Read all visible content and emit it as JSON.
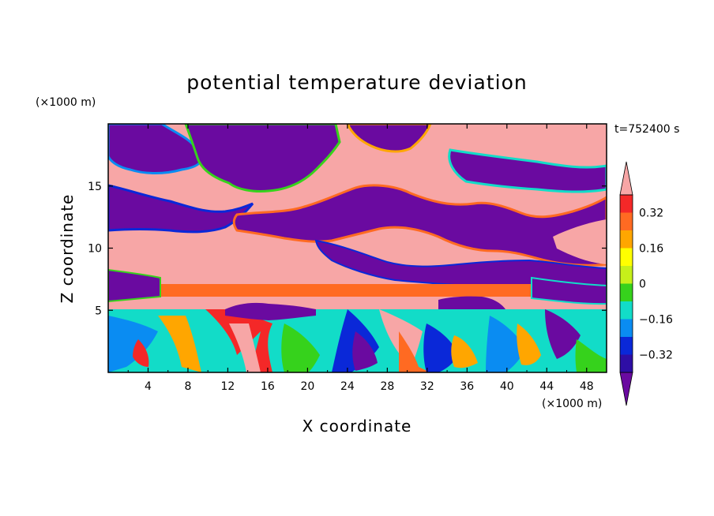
{
  "chart_data": {
    "type": "heatmap",
    "title": "potential temperature deviation",
    "xlabel": "X coordinate",
    "ylabel": "Z coordinate",
    "x_unit": "(×1000 m)",
    "y_unit": "(×1000 m)",
    "time_label": "t=752400 s",
    "xlim": [
      0,
      50
    ],
    "ylim": [
      0,
      20
    ],
    "x_ticks": [
      4,
      8,
      12,
      16,
      20,
      24,
      28,
      32,
      36,
      40,
      44,
      48
    ],
    "y_ticks": [
      5,
      10,
      15
    ],
    "colorbar": {
      "levels": [
        -0.4,
        -0.32,
        -0.24,
        -0.16,
        -0.08,
        0,
        0.08,
        0.16,
        0.24,
        0.32,
        0.4
      ],
      "tick_values": [
        0.32,
        0.16,
        0,
        -0.16,
        -0.32
      ],
      "tick_labels": [
        "0.32",
        "0.16",
        "0",
        "−0.16",
        "−0.32"
      ],
      "colors": [
        "#6a0aa0",
        "#2e0ea5",
        "#0a28d8",
        "#0a8cf2",
        "#12dcc8",
        "#36d21c",
        "#c6f01a",
        "#ffff00",
        "#ffa600",
        "#ff6a22",
        "#f42828",
        "#f7a6a6"
      ],
      "extend": "both"
    },
    "field_description_bands": [
      {
        "z_from": 0,
        "z_to": 5.2,
        "pattern": "mixed turbulent, values from -0.4 to 0.4"
      },
      {
        "z_from": 5.2,
        "z_to": 6.2,
        "pattern": "strongly positive (>0.4)"
      },
      {
        "z_from": 6.2,
        "z_to": 7.2,
        "pattern": "positive ~0.32"
      },
      {
        "z_from": 7.2,
        "z_to": 11,
        "pattern": "positive >0.4 west, negative < -0.4 east"
      },
      {
        "z_from": 11,
        "z_to": 20,
        "pattern": "alternating patches of >0.4 and < -0.4 with sharp fronts"
      }
    ]
  }
}
